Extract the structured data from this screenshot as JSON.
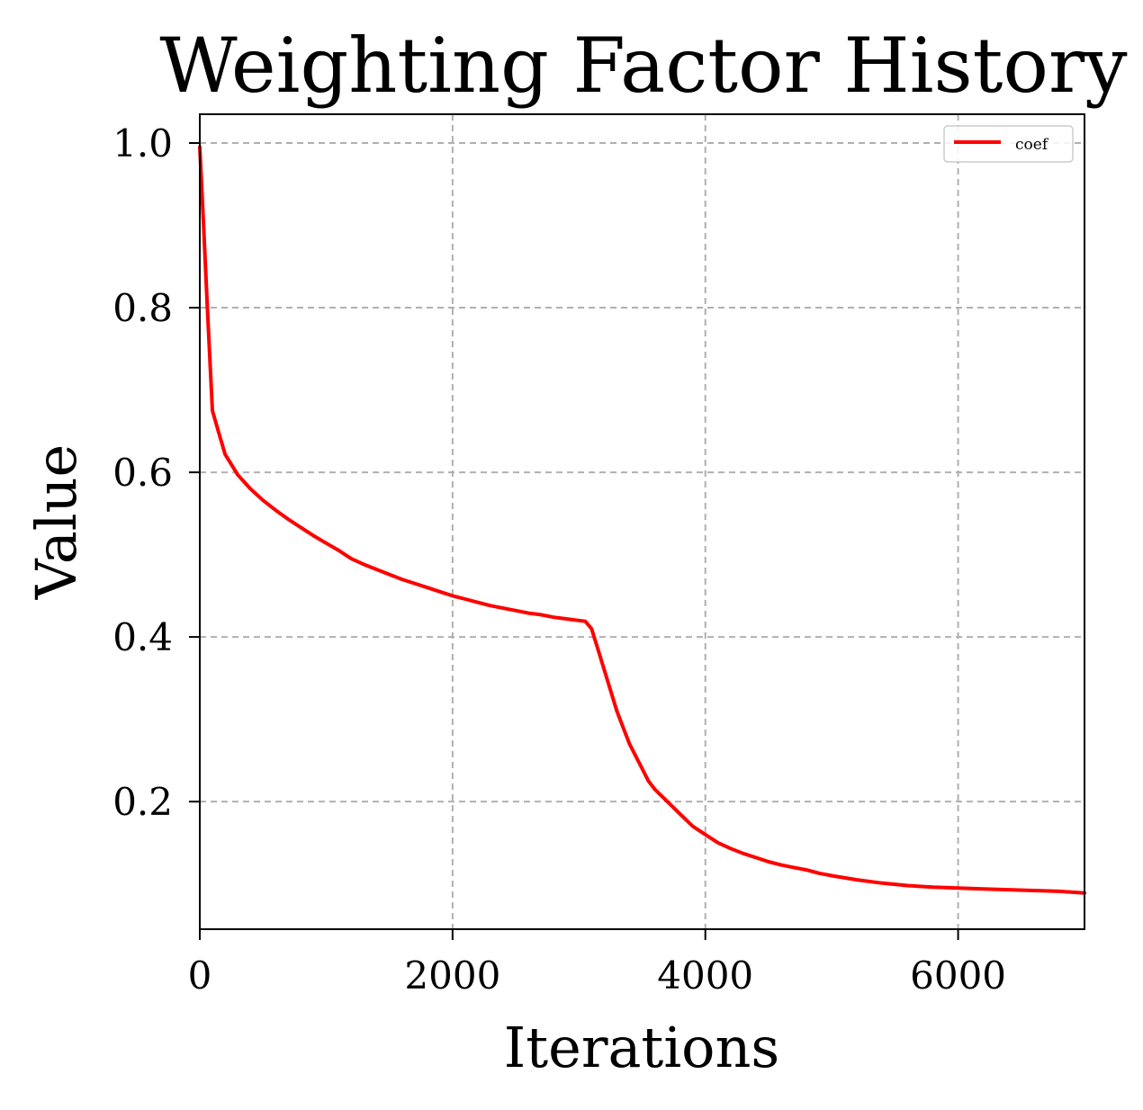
{
  "chart_data": {
    "type": "line",
    "title": "Weighting Factor History",
    "xlabel": "Iterations",
    "ylabel": "Value",
    "xlim": [
      0,
      7000
    ],
    "ylim": [
      0.045,
      1.035
    ],
    "xticks": [
      0,
      2000,
      4000,
      6000
    ],
    "xtick_labels": [
      "0",
      "2000",
      "4000",
      "6000"
    ],
    "yticks": [
      0.2,
      0.4,
      0.6,
      0.8,
      1.0
    ],
    "ytick_labels": [
      "0.2",
      "0.4",
      "0.6",
      "0.8",
      "1.0"
    ],
    "grid": true,
    "legend": {
      "position": "top-right",
      "entries": [
        "coef"
      ]
    },
    "colors": {
      "coef": "#ff0000",
      "grid": "#b0b0b0",
      "axes": "#000000"
    },
    "series": [
      {
        "name": "coef",
        "x": [
          0,
          30,
          60,
          100,
          150,
          200,
          300,
          400,
          500,
          600,
          700,
          800,
          900,
          1000,
          1100,
          1200,
          1300,
          1400,
          1500,
          1600,
          1700,
          1800,
          1900,
          2000,
          2100,
          2200,
          2300,
          2400,
          2500,
          2600,
          2700,
          2800,
          2900,
          3000,
          3050,
          3100,
          3150,
          3200,
          3250,
          3300,
          3350,
          3400,
          3450,
          3500,
          3550,
          3600,
          3700,
          3800,
          3900,
          4000,
          4100,
          4200,
          4300,
          4400,
          4500,
          4600,
          4700,
          4800,
          4900,
          5000,
          5200,
          5400,
          5600,
          5800,
          6000,
          6200,
          6400,
          6600,
          6800,
          7000
        ],
        "y": [
          0.995,
          0.9,
          0.8,
          0.675,
          0.648,
          0.622,
          0.597,
          0.58,
          0.566,
          0.554,
          0.543,
          0.533,
          0.523,
          0.514,
          0.505,
          0.495,
          0.488,
          0.482,
          0.476,
          0.47,
          0.465,
          0.46,
          0.455,
          0.45,
          0.446,
          0.442,
          0.438,
          0.435,
          0.432,
          0.429,
          0.427,
          0.424,
          0.422,
          0.42,
          0.419,
          0.41,
          0.385,
          0.36,
          0.335,
          0.31,
          0.29,
          0.27,
          0.255,
          0.24,
          0.225,
          0.215,
          0.2,
          0.185,
          0.17,
          0.16,
          0.15,
          0.143,
          0.137,
          0.132,
          0.127,
          0.123,
          0.12,
          0.117,
          0.113,
          0.11,
          0.105,
          0.101,
          0.098,
          0.096,
          0.095,
          0.094,
          0.093,
          0.092,
          0.091,
          0.089
        ]
      }
    ]
  }
}
